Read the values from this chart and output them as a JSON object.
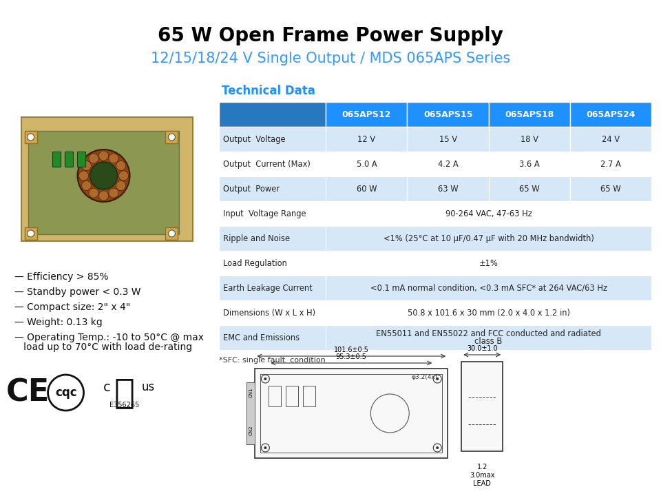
{
  "title": "65 W Open Frame Power Supply",
  "subtitle": "12/15/18/24 V Single Output / MDS 065APS Series",
  "title_color": "#000000",
  "subtitle_color": "#3399FF",
  "tech_data_label": "Technical Data",
  "tech_data_color": "#1E90FF",
  "header_bg": "#1E90FF",
  "header_text_color": "#FFFFFF",
  "row_bg_even": "#D6E8F7",
  "row_bg_odd": "#FFFFFF",
  "border_color": "#FFFFFF",
  "table_headers": [
    "",
    "065APS12",
    "065APS15",
    "065APS18",
    "065APS24"
  ],
  "table_rows": [
    [
      "Output  Voltage",
      "12 V",
      "15 V",
      "18 V",
      "24 V"
    ],
    [
      "Output  Current (Max)",
      "5.0 A",
      "4.2 A",
      "3.6 A",
      "2.7 A"
    ],
    [
      "Output  Power",
      "60 W",
      "63 W",
      "65 W",
      "65 W"
    ],
    [
      "Input  Voltage Range",
      "90-264 VAC, 47-63 Hz",
      "",
      "",
      ""
    ],
    [
      "Ripple and Noise",
      "<1% (25°C at 10 μF/0.47 μF with 20 MHz bandwidth)",
      "",
      "",
      ""
    ],
    [
      "Load Regulation",
      "±1%",
      "",
      "",
      ""
    ],
    [
      "Earth Leakage Current",
      "<0.1 mA normal condition, <0.3 mA SFC* at 264 VAC/63 Hz",
      "",
      "",
      ""
    ],
    [
      "Dimensions (W x L x H)",
      "50.8 x 101.6 x 30 mm (2.0 x 4.0 x 1.2 in)",
      "",
      "",
      ""
    ],
    [
      "EMC and Emissions",
      "EN55011 and EN55022 and FCC conducted and radiated\nclass B",
      "",
      "",
      ""
    ]
  ],
  "bullet_points": [
    "— Efficiency > 85%",
    "— Standby power < 0.3 W",
    "— Compact size: 2\" x 4\"",
    "— Weight: 0.13 kg",
    "— Operating Temp.: -10 to 50°C @ max\n   load up to 70°C with load de-rating"
  ],
  "sfc_note": "*SFC: single fault  condition",
  "bg_color": "#FFFFFF"
}
